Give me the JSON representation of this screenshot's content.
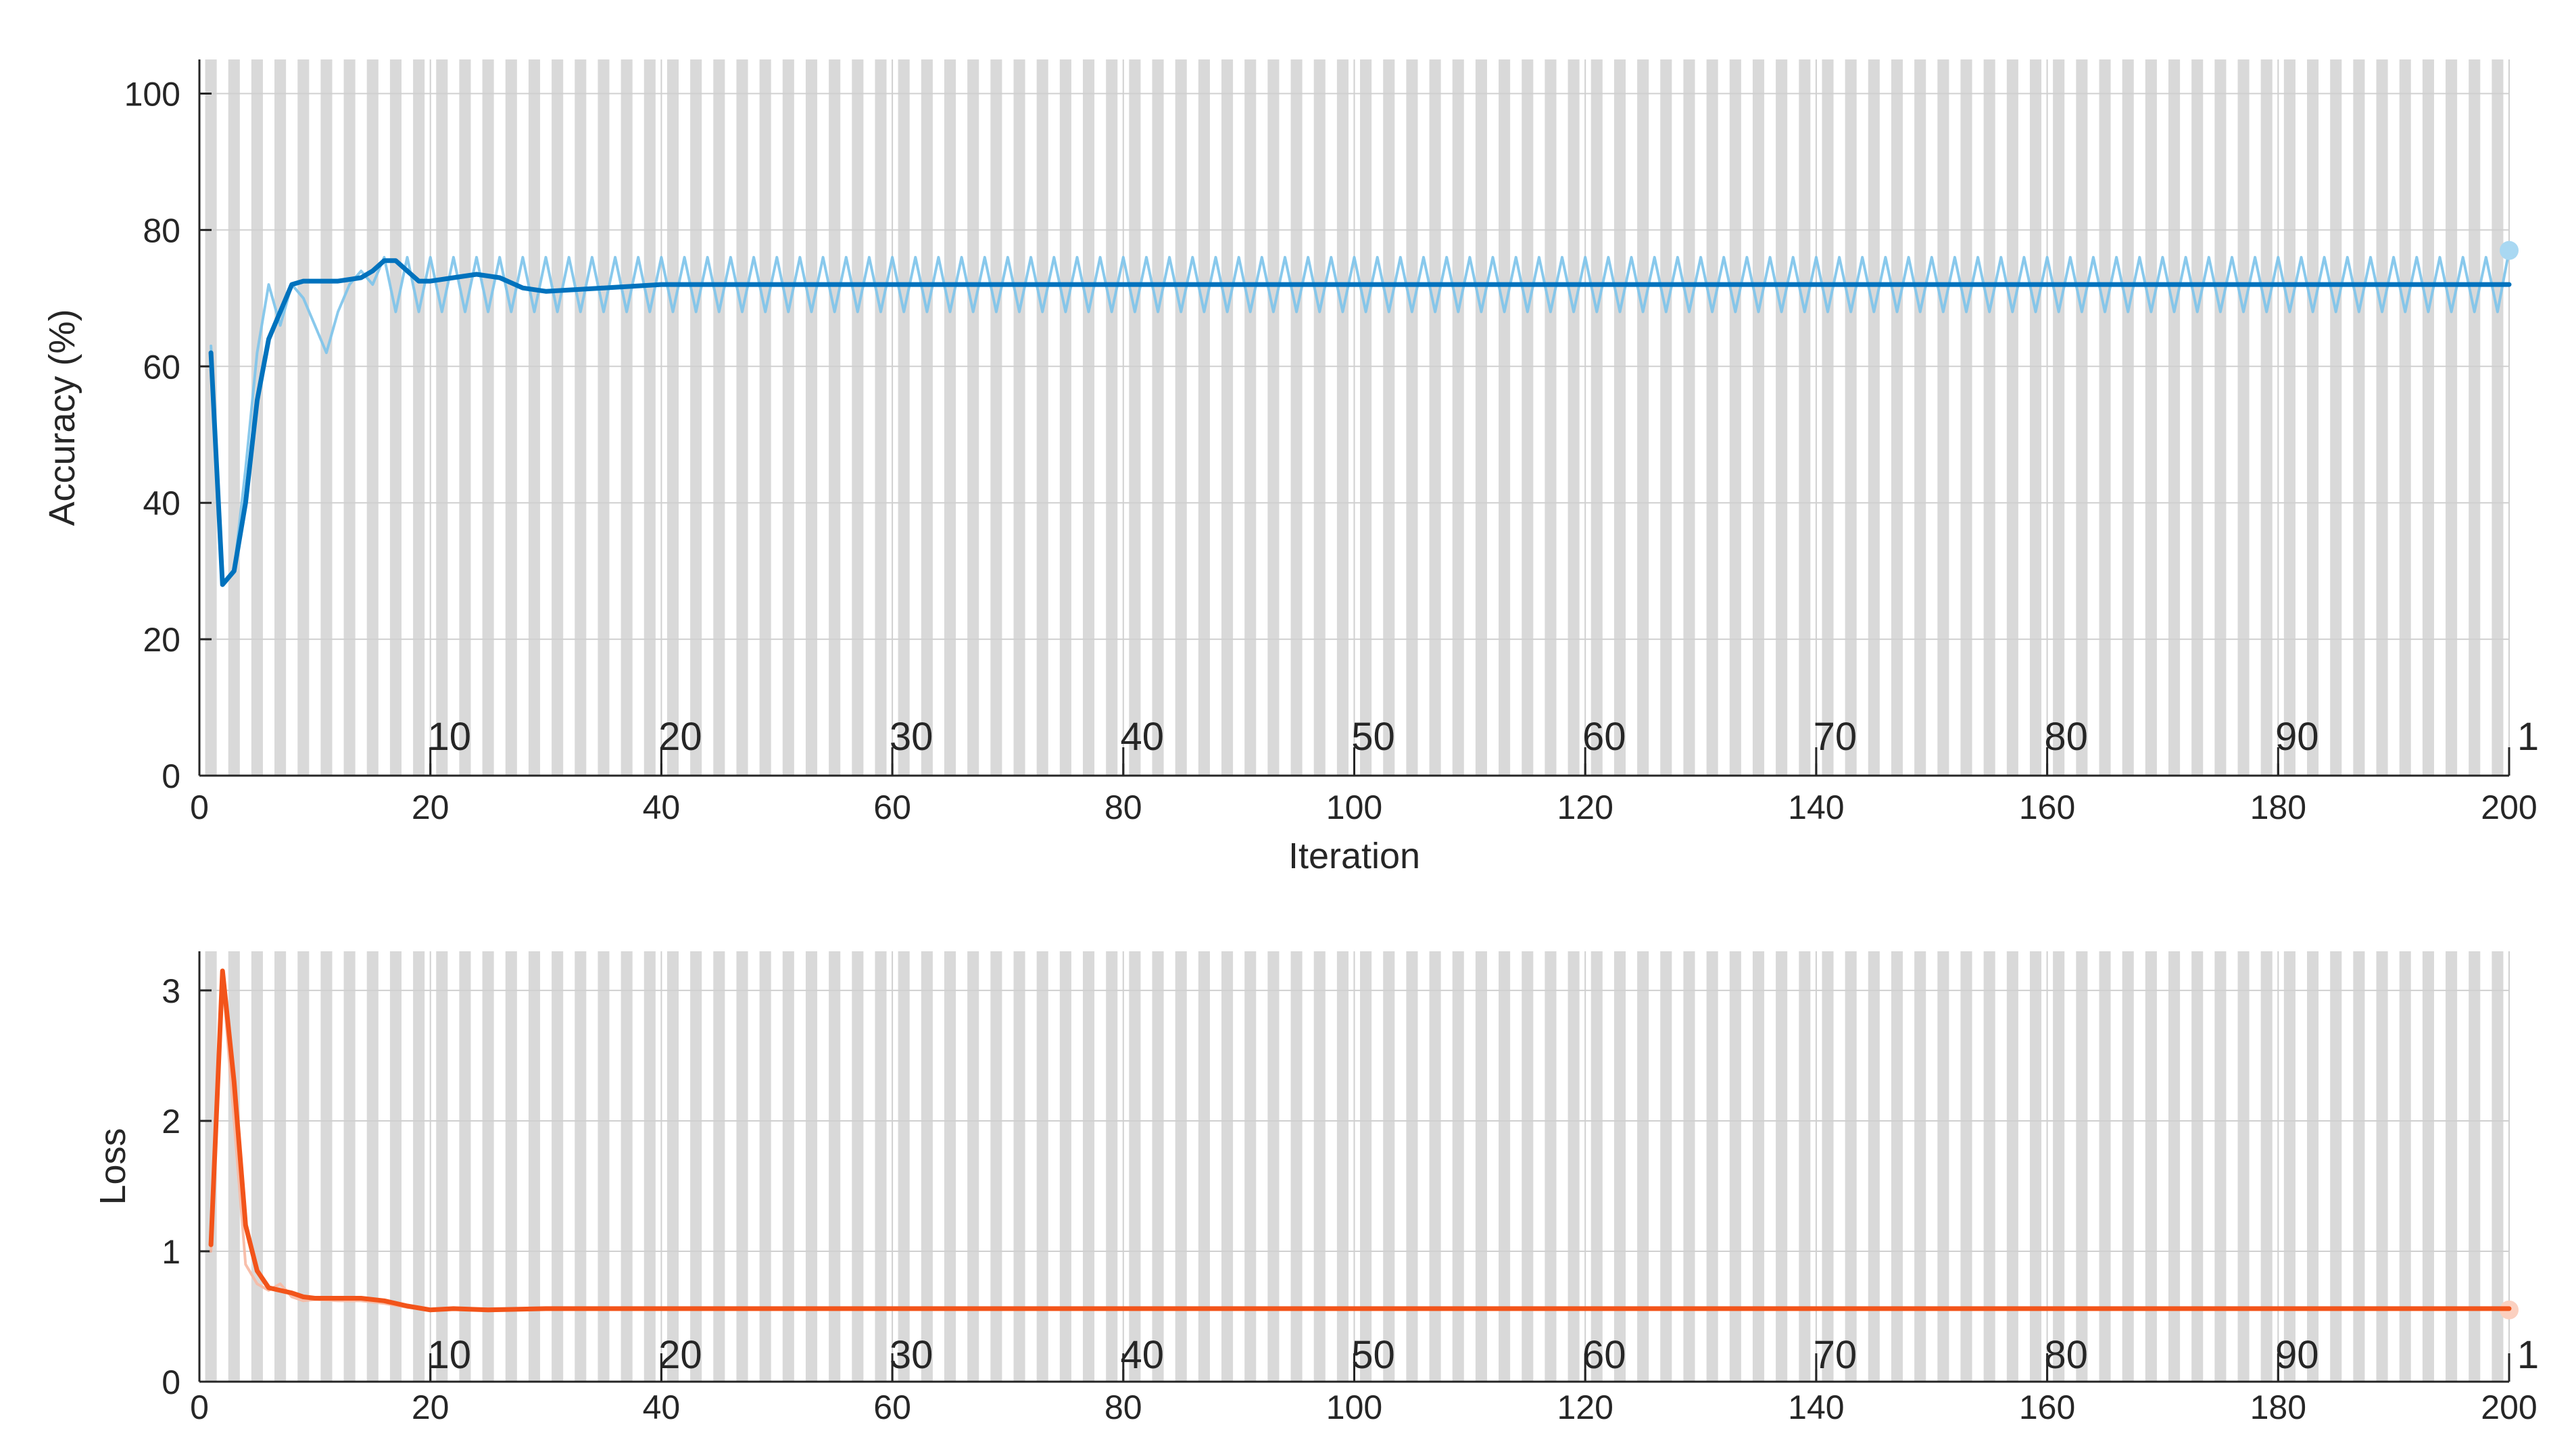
{
  "colors": {
    "accuracy_smoothed": "#0072bd",
    "accuracy_raw": "#7cc3ea",
    "accuracy_final_marker": "#a9d8f2",
    "loss_smoothed": "#f2541a",
    "loss_raw": "#f7b8a2",
    "loss_final_marker": "#fbd0c0",
    "epoch_band": "#d9d9d9",
    "grid": "#d0d0d0",
    "axis": "#262626"
  },
  "chart_data": [
    {
      "type": "line",
      "ylabel": "Accuracy (%)",
      "xlabel": "Iteration",
      "xlim": [
        0,
        200
      ],
      "ylim": [
        0,
        105
      ],
      "xticks": [
        0,
        20,
        40,
        60,
        80,
        100,
        120,
        140,
        160,
        180,
        200
      ],
      "yticks": [
        0,
        20,
        40,
        60,
        80,
        100
      ],
      "epoch_labels": [
        "10",
        "20",
        "30",
        "40",
        "50",
        "60",
        "70",
        "80",
        "90",
        "1"
      ],
      "epoch_label_iterations": [
        20,
        40,
        60,
        80,
        100,
        120,
        140,
        160,
        180,
        200
      ],
      "epoch_band_period": 2,
      "grid": true,
      "series": [
        {
          "role": "raw",
          "x": [
            1,
            2,
            3,
            4,
            5,
            6,
            7,
            8,
            9,
            10,
            11,
            12,
            13,
            14,
            15,
            16,
            17,
            18,
            19,
            20,
            21,
            22,
            23,
            24,
            25,
            26,
            27,
            28,
            29,
            30
          ],
          "values": [
            63,
            28,
            30,
            45,
            62,
            72,
            66,
            72,
            70,
            66,
            62,
            68,
            72,
            74,
            72,
            76,
            68,
            76,
            68,
            76,
            68,
            76,
            68,
            76,
            68,
            76,
            68,
            76,
            68,
            76
          ],
          "alternate_after": [
            68,
            76
          ],
          "final": 77
        },
        {
          "role": "smoothed",
          "x": [
            1,
            2,
            3,
            4,
            5,
            6,
            7,
            8,
            9,
            10,
            12,
            14,
            15,
            16,
            17,
            18,
            19,
            20,
            22,
            24,
            26,
            28,
            30,
            35,
            40,
            200
          ],
          "values": [
            62,
            28,
            30,
            40,
            55,
            64,
            68,
            72,
            72.5,
            72.5,
            72.5,
            73,
            74,
            75.5,
            75.5,
            74,
            72.5,
            72.5,
            73,
            73.5,
            73,
            71.5,
            71,
            71.5,
            72,
            72
          ]
        }
      ]
    },
    {
      "type": "line",
      "ylabel": "Loss",
      "xlabel": "",
      "xlim": [
        0,
        200
      ],
      "ylim": [
        0,
        3.3
      ],
      "xticks": [
        0,
        20,
        40,
        60,
        80,
        100,
        120,
        140,
        160,
        180,
        200
      ],
      "yticks": [
        0,
        1,
        2,
        3
      ],
      "epoch_labels": [
        "10",
        "20",
        "30",
        "40",
        "50",
        "60",
        "70",
        "80",
        "90",
        "1"
      ],
      "epoch_label_iterations": [
        20,
        40,
        60,
        80,
        100,
        120,
        140,
        160,
        180,
        200
      ],
      "epoch_band_period": 2,
      "grid": true,
      "series": [
        {
          "role": "raw",
          "x": [
            1,
            2,
            3,
            4,
            5,
            6,
            7,
            8,
            9,
            10,
            12,
            14,
            16,
            18,
            20,
            25,
            30,
            200
          ],
          "values": [
            1.0,
            3.1,
            2.0,
            0.9,
            0.75,
            0.7,
            0.75,
            0.65,
            0.62,
            0.63,
            0.62,
            0.62,
            0.6,
            0.57,
            0.55,
            0.56,
            0.56,
            0.56
          ],
          "final": 0.55
        },
        {
          "role": "smoothed",
          "x": [
            1,
            2,
            3,
            4,
            5,
            6,
            7,
            8,
            9,
            10,
            12,
            14,
            16,
            18,
            20,
            22,
            25,
            30,
            40,
            200
          ],
          "values": [
            1.05,
            3.15,
            2.3,
            1.2,
            0.85,
            0.72,
            0.7,
            0.68,
            0.65,
            0.64,
            0.64,
            0.64,
            0.62,
            0.58,
            0.55,
            0.56,
            0.55,
            0.56,
            0.56,
            0.56
          ]
        }
      ]
    }
  ]
}
